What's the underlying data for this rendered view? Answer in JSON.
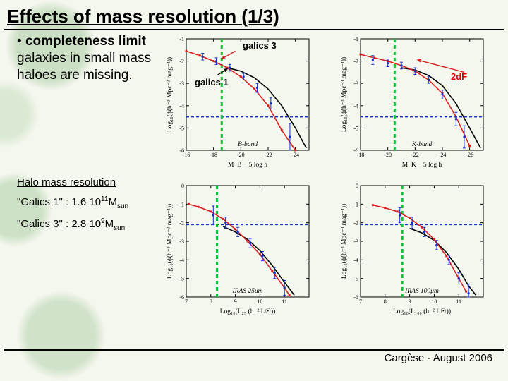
{
  "title": "Effects of mass resolution (1/3)",
  "bullet": "• completeness limit galaxies in small mass haloes are missing.",
  "bullet_bold_phrase": "completeness limit",
  "halo": {
    "heading": "Halo mass resolution",
    "line1_prefix": "\"Galics 1\" : 1.6 10",
    "line1_exp": "11",
    "line1_suffix": "M",
    "line1_sub": "sun",
    "line2_prefix": "\"Galics 3\" : 2.8 10",
    "line2_exp": "9",
    "line2_suffix": "M",
    "line2_sub": "sun"
  },
  "annotations": {
    "galics3": "galics 3",
    "galics1": "galics 1",
    "twodf": "2dF"
  },
  "footer": "Cargèse - August 2006",
  "colors": {
    "red": "#d82020",
    "blue": "#1030d0",
    "green": "#10c030",
    "black": "#000000"
  },
  "charts": {
    "panel_bband": {
      "ylabel": "Log₁₀(ϕ(h⁻³ Mpc⁻³ mag⁻¹))",
      "xlabel": "M_B − 5 log h",
      "xlim": [
        -16,
        -25
      ],
      "xticks": [
        -16,
        -18,
        -20,
        -22,
        -24
      ],
      "ylim": [
        -6,
        -1
      ],
      "yticks": [
        -6,
        -5,
        -4,
        -3,
        -2,
        -1
      ],
      "inset": "B-band",
      "blue_dash_y": -4.5,
      "green_dash_x": -18.6,
      "red_series": {
        "x": [
          -16,
          -17,
          -18,
          -19,
          -20,
          -21,
          -22,
          -23,
          -24
        ],
        "y": [
          -1.55,
          -1.75,
          -2.0,
          -2.3,
          -2.7,
          -3.25,
          -4.0,
          -5.1,
          -6.0
        ]
      },
      "blue_errpts": {
        "x": [
          -17.2,
          -18.2,
          -19.2,
          -20.2,
          -21.2,
          -22.2,
          -23.6
        ],
        "y": [
          -1.8,
          -2.0,
          -2.3,
          -2.7,
          -3.2,
          -3.9,
          -5.4
        ],
        "err": [
          0.15,
          0.15,
          0.15,
          0.15,
          0.2,
          0.25,
          0.6
        ]
      },
      "black_series": {
        "x": [
          -19,
          -20,
          -21,
          -22,
          -23,
          -24,
          -24.8
        ],
        "y": [
          -2.3,
          -2.45,
          -2.75,
          -3.25,
          -4.0,
          -5.0,
          -5.9
        ]
      },
      "black_arrow": {
        "from": [
          -18.3,
          -2.62
        ],
        "to": [
          -19.0,
          -2.35
        ]
      },
      "red_arrow": {
        "from": [
          -19.6,
          -1.55
        ],
        "to": [
          -18.6,
          -1.9
        ]
      }
    },
    "panel_kband": {
      "ylabel": "Log₁₀(ϕ(h⁻³ Mpc⁻³ mag⁻¹))",
      "xlabel": "M_K − 5 log h",
      "xlim": [
        -18,
        -27
      ],
      "xticks": [
        -18,
        -20,
        -22,
        -24,
        -26
      ],
      "ylim": [
        -6,
        -1
      ],
      "yticks": [
        -6,
        -5,
        -4,
        -3,
        -2,
        -1
      ],
      "inset": "K-band",
      "blue_dash_y": -4.5,
      "green_dash_x": -20.5,
      "red_series": {
        "x": [
          -18,
          -19,
          -20,
          -21,
          -22,
          -23,
          -24,
          -25,
          -26
        ],
        "y": [
          -1.7,
          -1.85,
          -2.0,
          -2.2,
          -2.45,
          -2.85,
          -3.45,
          -4.5,
          -5.8
        ]
      },
      "blue_errpts": {
        "x": [
          -18.9,
          -20,
          -21,
          -22,
          -23,
          -24,
          -25,
          -25.6
        ],
        "y": [
          -1.95,
          -2.1,
          -2.2,
          -2.45,
          -2.85,
          -3.5,
          -4.6,
          -5.4
        ],
        "err": [
          0.2,
          0.15,
          0.15,
          0.15,
          0.15,
          0.2,
          0.3,
          0.5
        ]
      },
      "black_series": {
        "x": [
          -21,
          -22,
          -23,
          -24,
          -25,
          -26,
          -26.8
        ],
        "y": [
          -2.3,
          -2.4,
          -2.65,
          -3.1,
          -3.9,
          -5.0,
          -5.9
        ]
      },
      "red_arrow_2df": {
        "from": [
          -25.6,
          -2.5
        ],
        "to": [
          -22.2,
          -1.95
        ]
      }
    },
    "panel_iras25": {
      "ylabel": "Log₁₀(ϕ(h⁻³ Mpc⁻³ mag⁻¹))",
      "xlabel": "Log₁₀(L₂₅ (h⁻² L☉))",
      "xlim": [
        7,
        12
      ],
      "xticks": [
        7,
        8,
        9,
        10,
        11
      ],
      "ylim": [
        -6,
        0
      ],
      "yticks": [
        -6,
        -5,
        -4,
        -3,
        -2,
        -1,
        0
      ],
      "inset": "IRAS 25μm",
      "blue_dash_y": -2.1,
      "green_dash_x": 8.25,
      "red_series": {
        "x": [
          7.1,
          7.5,
          8,
          8.5,
          9,
          9.5,
          10,
          10.5,
          11,
          11.2
        ],
        "y": [
          -1.0,
          -1.15,
          -1.4,
          -1.8,
          -2.35,
          -3.0,
          -3.7,
          -4.6,
          -5.5,
          -5.9
        ]
      },
      "blue_errpts": {
        "x": [
          8.1,
          8.6,
          9.1,
          9.6,
          10.1,
          10.6,
          11.0
        ],
        "y": [
          -1.6,
          -2.0,
          -2.5,
          -3.1,
          -3.8,
          -4.7,
          -5.5
        ],
        "err": [
          0.5,
          0.3,
          0.25,
          0.25,
          0.25,
          0.3,
          0.4
        ]
      },
      "black_series": {
        "x": [
          8.5,
          9,
          9.5,
          10,
          10.5,
          11,
          11.4
        ],
        "y": [
          -2.2,
          -2.5,
          -2.9,
          -3.5,
          -4.3,
          -5.2,
          -5.9
        ]
      }
    },
    "panel_iras100": {
      "ylabel": "Log₁₀(ϕ(h⁻³ Mpc⁻³ mag⁻¹))",
      "xlabel": "Log₁₀(L₁₀₀ (h⁻² L☉))",
      "xlim": [
        7,
        12
      ],
      "xticks": [
        7,
        8,
        9,
        10,
        11
      ],
      "ylim": [
        -6,
        0
      ],
      "yticks": [
        -6,
        -5,
        -4,
        -3,
        -2,
        -1,
        0
      ],
      "inset": "IRAS 100μm",
      "blue_dash_y": -2.1,
      "green_dash_x": 8.7,
      "red_series": {
        "x": [
          7.5,
          8,
          8.5,
          9,
          9.5,
          10,
          10.5,
          11,
          11.3
        ],
        "y": [
          -1.05,
          -1.2,
          -1.4,
          -1.75,
          -2.25,
          -2.9,
          -3.8,
          -5.0,
          -5.7
        ]
      },
      "blue_errpts": {
        "x": [
          8.6,
          9.1,
          9.6,
          10.1,
          10.6,
          11.0,
          11.4
        ],
        "y": [
          -1.6,
          -2.0,
          -2.5,
          -3.2,
          -4.0,
          -5.0,
          -5.8
        ],
        "err": [
          0.4,
          0.3,
          0.25,
          0.25,
          0.25,
          0.3,
          0.5
        ]
      },
      "black_series": {
        "x": [
          9,
          9.5,
          10,
          10.5,
          11,
          11.4,
          11.7
        ],
        "y": [
          -2.3,
          -2.55,
          -2.95,
          -3.6,
          -4.5,
          -5.4,
          -5.9
        ]
      }
    }
  }
}
